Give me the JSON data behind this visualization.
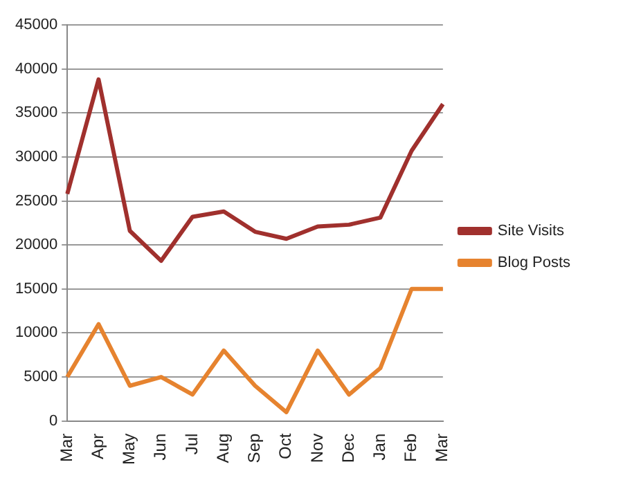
{
  "chart_data": {
    "type": "line",
    "categories": [
      "Mar",
      "Apr",
      "May",
      "Jun",
      "Jul",
      "Aug",
      "Sep",
      "Oct",
      "Nov",
      "Dec",
      "Jan",
      "Feb",
      "Mar"
    ],
    "series": [
      {
        "name": "Site Visits",
        "color": "#a0302d",
        "values": [
          25800,
          38800,
          21600,
          18200,
          23200,
          23800,
          21500,
          20700,
          22100,
          22300,
          23100,
          30700,
          36000
        ]
      },
      {
        "name": "Blog Posts",
        "color": "#e6832f",
        "values": [
          5000,
          11000,
          4000,
          5000,
          3000,
          8000,
          4000,
          1000,
          8000,
          3000,
          6000,
          15000,
          15000
        ]
      }
    ],
    "ylim": [
      0,
      45000
    ],
    "yticks": [
      0,
      5000,
      10000,
      15000,
      20000,
      25000,
      30000,
      35000,
      40000,
      45000
    ],
    "grid": "y",
    "legend": "right",
    "marker": "none",
    "line_style": "solid"
  }
}
